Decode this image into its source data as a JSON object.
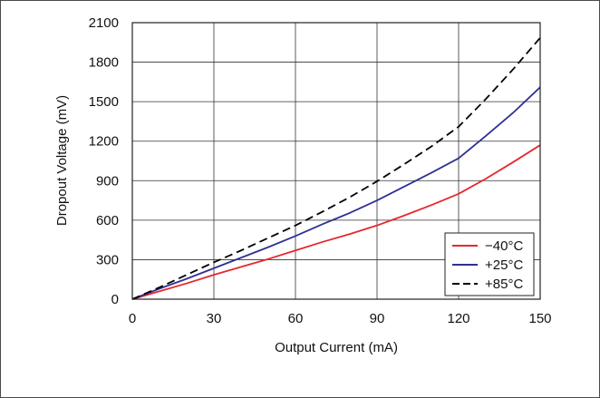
{
  "chart_data": {
    "type": "line",
    "title": "",
    "xlabel": "Output Current (mA)",
    "ylabel": "Dropout Voltage (mV)",
    "xlim": [
      0,
      150
    ],
    "ylim": [
      0,
      2100
    ],
    "xticks": [
      0,
      30,
      60,
      90,
      120,
      150
    ],
    "yticks": [
      0,
      300,
      600,
      900,
      1200,
      1500,
      1800,
      2100
    ],
    "xtick_labels": [
      "0",
      "30",
      "60",
      "90",
      "120",
      "150"
    ],
    "ytick_labels": [
      "0",
      "300",
      "600",
      "900",
      "1200",
      "1500",
      "1800",
      "2100"
    ],
    "grid": true,
    "legend_position": "bottom-right",
    "series": [
      {
        "name": "−40°C",
        "color": "#e8262c",
        "dash": "solid",
        "x": [
          0,
          10,
          20,
          30,
          40,
          50,
          60,
          70,
          80,
          90,
          100,
          110,
          120,
          130,
          140,
          150
        ],
        "y": [
          0,
          60,
          120,
          185,
          245,
          305,
          370,
          435,
          495,
          560,
          635,
          715,
          800,
          915,
          1040,
          1170
        ]
      },
      {
        "name": "+25°C",
        "color": "#2e3192",
        "dash": "solid",
        "x": [
          0,
          10,
          20,
          30,
          40,
          50,
          60,
          70,
          80,
          90,
          100,
          110,
          120,
          130,
          140,
          150
        ],
        "y": [
          0,
          80,
          155,
          235,
          315,
          395,
          480,
          570,
          655,
          750,
          855,
          960,
          1070,
          1240,
          1415,
          1610
        ]
      },
      {
        "name": "+85°C",
        "color": "#000000",
        "dash": "dashed",
        "x": [
          0,
          10,
          20,
          30,
          40,
          50,
          60,
          70,
          80,
          90,
          100,
          110,
          120,
          130,
          140,
          150
        ],
        "y": [
          0,
          90,
          185,
          280,
          370,
          465,
          560,
          665,
          775,
          895,
          1025,
          1160,
          1310,
          1520,
          1745,
          1985
        ]
      }
    ]
  }
}
